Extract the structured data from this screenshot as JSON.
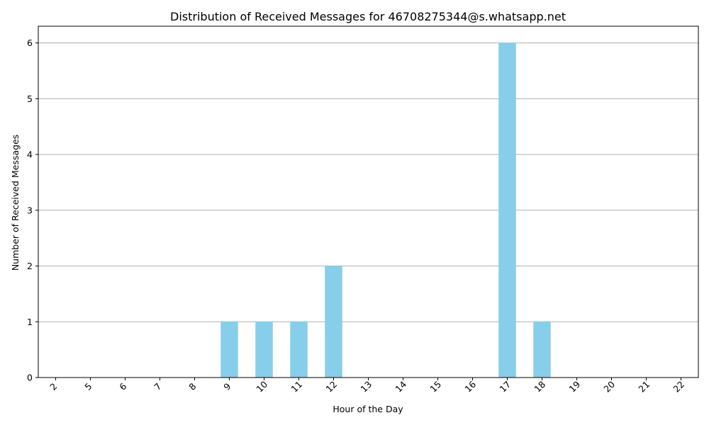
{
  "chart_data": {
    "type": "bar",
    "title": "Distribution of Received Messages for 46708275344@s.whatsapp.net",
    "xlabel": "Hour of the Day",
    "ylabel": "Number of Received Messages",
    "categories": [
      "2",
      "5",
      "6",
      "7",
      "8",
      "9",
      "10",
      "11",
      "12",
      "13",
      "14",
      "15",
      "16",
      "17",
      "18",
      "19",
      "20",
      "21",
      "22"
    ],
    "values": [
      0,
      0,
      0,
      0,
      0,
      1,
      1,
      1,
      2,
      0,
      0,
      0,
      0,
      6,
      1,
      0,
      0,
      0,
      0
    ],
    "ylim": [
      0,
      6.3
    ],
    "yticks": [
      0,
      1,
      2,
      3,
      4,
      5,
      6
    ],
    "grid": "y-axis",
    "bar_color": "#87ceeb",
    "grid_color": "#b0b0b0",
    "legend": "none"
  }
}
